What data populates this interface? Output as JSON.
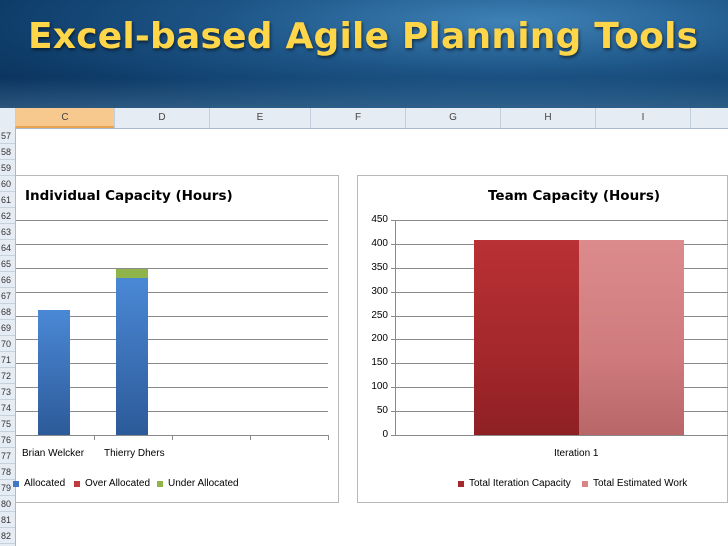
{
  "slide": {
    "title": "Excel-based Agile Planning Tools"
  },
  "sheet": {
    "columns": [
      "C",
      "D",
      "E",
      "F",
      "G",
      "H",
      "I"
    ],
    "selected_column": "C",
    "rows": [
      "57",
      "58",
      "59",
      "60",
      "61",
      "62",
      "63",
      "64",
      "65",
      "66",
      "67",
      "68",
      "69",
      "70",
      "71",
      "72",
      "73",
      "74",
      "75",
      "76",
      "77",
      "78",
      "79",
      "80",
      "81",
      "82"
    ]
  },
  "colors": {
    "allocated": "#3f77c4",
    "over_allocated": "#c0393b",
    "under_allocated": "#8fb54a",
    "total_iteration_capacity": "#a5282c",
    "total_estimated_work": "#d98485"
  },
  "individual_chart": {
    "title": "Individual Capacity (Hours)",
    "categories": [
      "Brian Welcker",
      "Thierry Dhers"
    ],
    "legend": [
      "Allocated",
      "Over Allocated",
      "Under Allocated"
    ]
  },
  "team_chart": {
    "title": "Team Capacity (Hours)",
    "yticks": [
      "450",
      "400",
      "350",
      "300",
      "250",
      "200",
      "150",
      "100",
      "50",
      "0"
    ],
    "category": "Iteration 1",
    "legend": [
      "Total Iteration Capacity",
      "Total Estimated Work"
    ]
  },
  "chart_data": [
    {
      "type": "bar",
      "title": "Individual Capacity (Hours)",
      "stacked": true,
      "categories": [
        "Brian Welcker",
        "Thierry Dhers"
      ],
      "series": [
        {
          "name": "Allocated",
          "values": [
            0.58,
            0.73
          ]
        },
        {
          "name": "Over Allocated",
          "values": [
            0,
            0
          ]
        },
        {
          "name": "Under Allocated",
          "values": [
            0,
            0.04
          ]
        }
      ],
      "ylim": [
        0,
        1
      ],
      "grid": true,
      "legend_position": "bottom"
    },
    {
      "type": "bar",
      "title": "Team Capacity (Hours)",
      "categories": [
        "Iteration 1"
      ],
      "series": [
        {
          "name": "Total Iteration Capacity",
          "values": [
            408
          ]
        },
        {
          "name": "Total Estimated Work",
          "values": [
            408
          ]
        }
      ],
      "ylim": [
        0,
        450
      ],
      "grid": true,
      "legend_position": "bottom"
    }
  ]
}
